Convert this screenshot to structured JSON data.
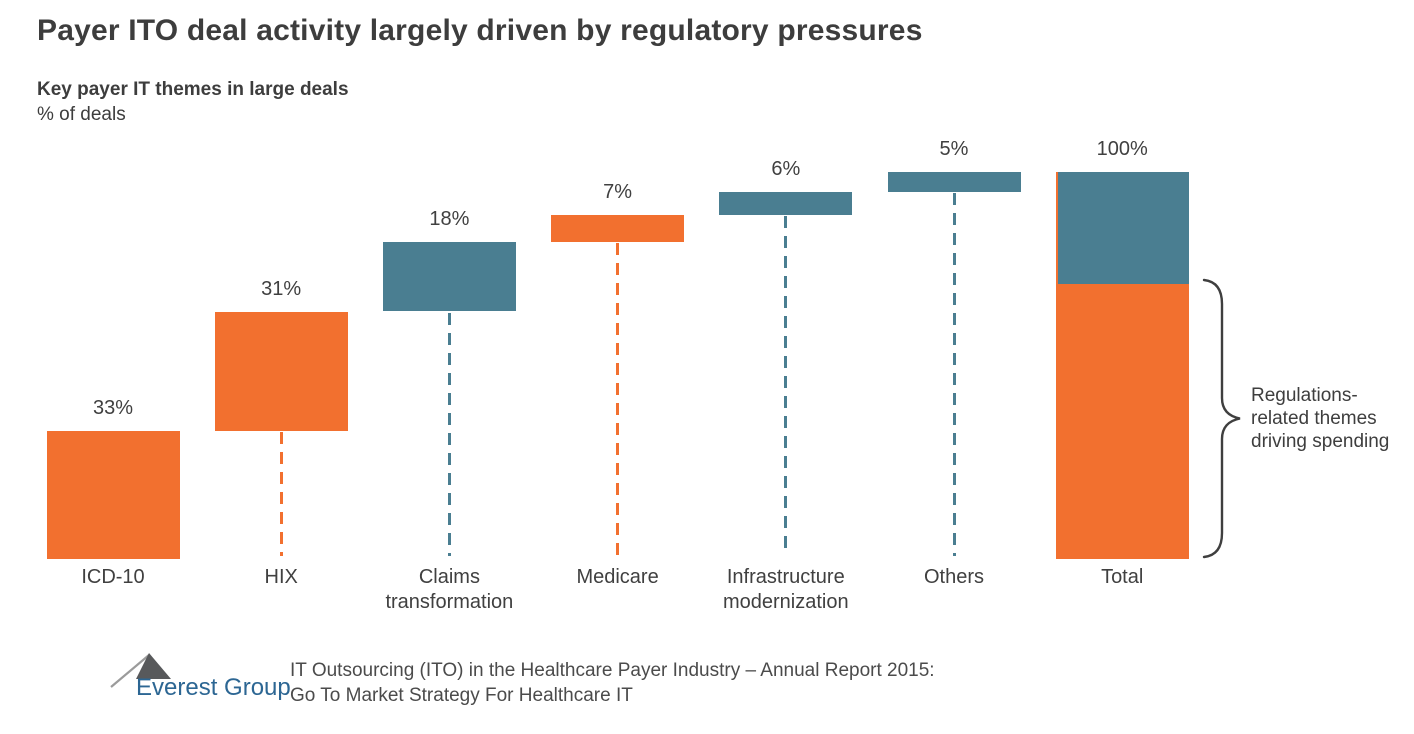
{
  "title": "Payer ITO deal activity largely driven by regulatory pressures",
  "subtitle": "Key payer IT themes in large deals",
  "unit_label": "% of deals",
  "colors": {
    "orange": "#f2702f",
    "teal": "#4a7e91",
    "text": "#404040",
    "brace": "#3f3f3f",
    "logo_blue": "#2c6693",
    "logo_peak_dark": "#58595b",
    "logo_peak_light": "#9b9b9b"
  },
  "chart_data": {
    "type": "bar",
    "subtype": "waterfall",
    "title": "Key payer IT themes in large deals",
    "ylabel": "% of deals",
    "ylim": [
      0,
      100
    ],
    "grid": false,
    "categories": [
      "ICD-10",
      "HIX",
      "Claims transformation",
      "Medicare",
      "Infrastructure modernization",
      "Others",
      "Total"
    ],
    "values": [
      33,
      31,
      18,
      7,
      6,
      5,
      100
    ],
    "value_labels": [
      "33%",
      "31%",
      "18%",
      "7%",
      "6%",
      "5%",
      "100%"
    ],
    "bar_colors": [
      "orange",
      "orange",
      "teal",
      "orange",
      "teal",
      "teal",
      "split"
    ],
    "total_segments": [
      {
        "name": "regulations-related",
        "value": 71,
        "color": "orange",
        "position": "bottom"
      },
      {
        "name": "other-themes",
        "value": 29,
        "color": "teal",
        "position": "top"
      }
    ],
    "annotation": "Regulations-related themes driving spending"
  },
  "footer": {
    "logo_text": "Everest Group",
    "report_line1": "IT Outsourcing (ITO) in the Healthcare Payer Industry – Annual Report 2015:",
    "report_line2": "Go To Market Strategy For Healthcare IT"
  }
}
